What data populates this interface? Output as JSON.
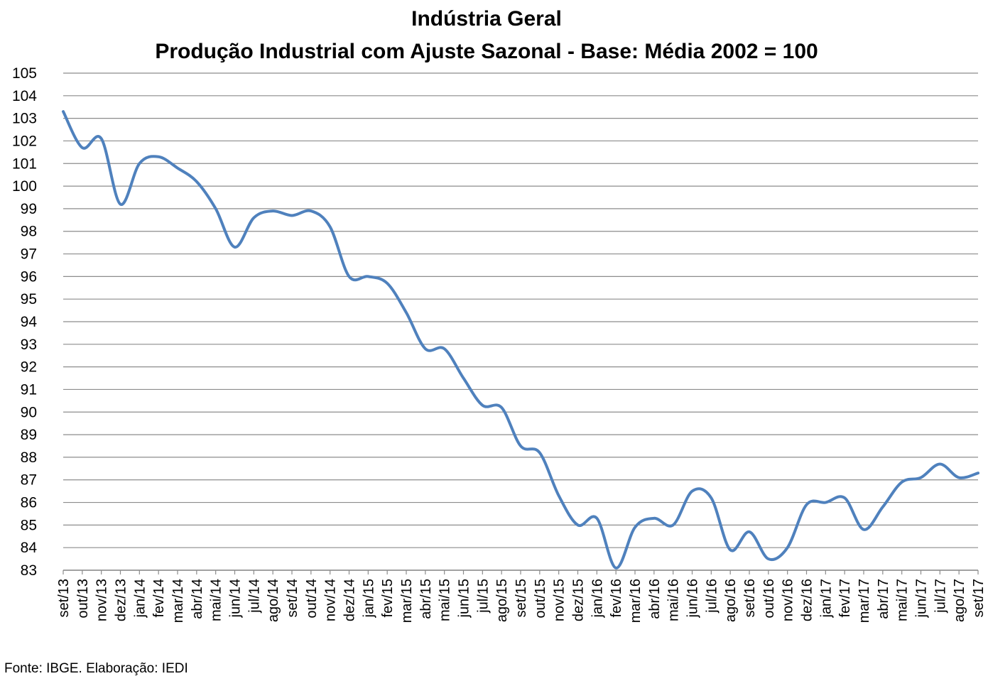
{
  "source_note": "Fonte: IBGE. Elaboração: IEDI",
  "chart_data": {
    "type": "line",
    "title": "Indústria Geral",
    "subtitle": "Produção Industrial com Ajuste Sazonal - Base: Média 2002 = 100",
    "xlabel": "",
    "ylabel": "",
    "ylim": [
      83,
      105
    ],
    "yticks": [
      83,
      84,
      85,
      86,
      87,
      88,
      89,
      90,
      91,
      92,
      93,
      94,
      95,
      96,
      97,
      98,
      99,
      100,
      101,
      102,
      103,
      104,
      105
    ],
    "grid": true,
    "legend": "none",
    "line_color": "#4F81BD",
    "categories": [
      "set/13",
      "out/13",
      "nov/13",
      "dez/13",
      "jan/14",
      "fev/14",
      "mar/14",
      "abr/14",
      "mai/14",
      "jun/14",
      "jul/14",
      "ago/14",
      "set/14",
      "out/14",
      "nov/14",
      "dez/14",
      "jan/15",
      "fev/15",
      "mar/15",
      "abr/15",
      "mai/15",
      "jun/15",
      "jul/15",
      "ago/15",
      "set/15",
      "out/15",
      "nov/15",
      "dez/15",
      "jan/16",
      "fev/16",
      "mar/16",
      "abr/16",
      "mai/16",
      "jun/16",
      "jul/16",
      "ago/16",
      "set/16",
      "out/16",
      "nov/16",
      "dez/16",
      "jan/17",
      "fev/17",
      "mar/17",
      "abr/17",
      "mai/17",
      "jun/17",
      "jul/17",
      "ago/17",
      "set/17"
    ],
    "series": [
      {
        "values": [
          103.3,
          101.7,
          102.1,
          99.2,
          101.0,
          101.3,
          100.8,
          100.2,
          99.0,
          97.3,
          98.6,
          98.9,
          98.7,
          98.9,
          98.2,
          96.0,
          96.0,
          95.7,
          94.4,
          92.8,
          92.8,
          91.5,
          90.3,
          90.2,
          88.5,
          88.2,
          86.3,
          85.0,
          85.3,
          83.1,
          84.9,
          85.3,
          85.0,
          86.5,
          86.2,
          83.9,
          84.7,
          83.5,
          84.0,
          85.9,
          86.0,
          86.2,
          84.8,
          85.8,
          86.9,
          87.1,
          87.7,
          87.1,
          87.3
        ]
      }
    ]
  }
}
